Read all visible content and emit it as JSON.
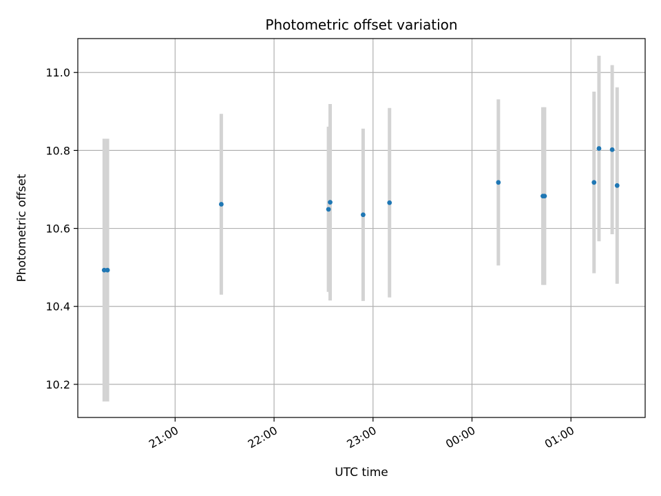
{
  "chart_data": {
    "type": "scatter",
    "title": "Photometric offset variation",
    "xlabel": "UTC time",
    "ylabel": "Photometric offset",
    "x_axis_type": "time",
    "x_ticks": [
      "21:00",
      "22:00",
      "23:00",
      "00:00",
      "01:00"
    ],
    "y_ticks": [
      "10.2",
      "10.4",
      "10.6",
      "10.8",
      "11.0"
    ],
    "ylim": [
      10.115,
      11.087
    ],
    "xlim": [
      "20:01",
      "01:45"
    ],
    "grid": true,
    "colors": {
      "points": "#1f77b4",
      "errorbars": "#d3d3d3",
      "grid": "#b0b0b0"
    },
    "series": [
      {
        "points": [
          {
            "x": "20:17",
            "y": 10.493,
            "err": 0.337
          },
          {
            "x": "20:19",
            "y": 10.493,
            "err": 0.337
          },
          {
            "x": "21:28",
            "y": 10.662,
            "err": 0.232
          },
          {
            "x": "22:33",
            "y": 10.649,
            "err": 0.212
          },
          {
            "x": "22:34",
            "y": 10.667,
            "err": 0.252
          },
          {
            "x": "22:54",
            "y": 10.635,
            "err": 0.221
          },
          {
            "x": "23:10",
            "y": 10.666,
            "err": 0.243
          },
          {
            "x": "00:16",
            "y": 10.718,
            "err": 0.213
          },
          {
            "x": "00:43",
            "y": 10.683,
            "err": 0.228
          },
          {
            "x": "00:44",
            "y": 10.683,
            "err": 0.228
          },
          {
            "x": "01:14",
            "y": 10.718,
            "err": 0.233
          },
          {
            "x": "01:17",
            "y": 10.805,
            "err": 0.238
          },
          {
            "x": "01:25",
            "y": 10.802,
            "err": 0.217
          },
          {
            "x": "01:28",
            "y": 10.71,
            "err": 0.252
          }
        ]
      }
    ]
  }
}
